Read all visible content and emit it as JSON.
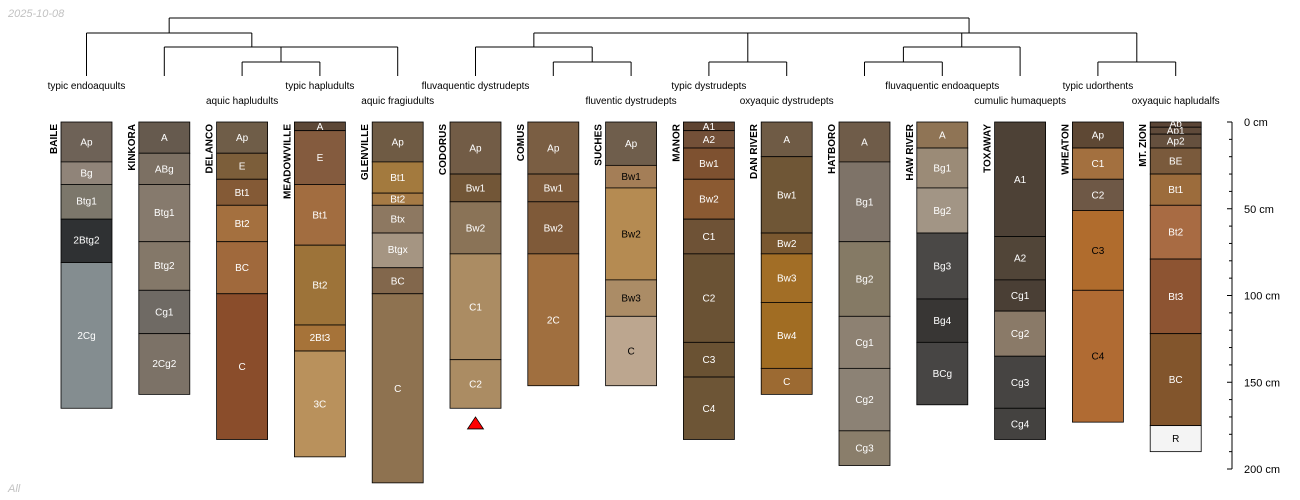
{
  "date_stamp": "2025-10-08",
  "subset_label": "All",
  "depth_axis": {
    "unit": "cm",
    "max_depth": 200,
    "ticks": [
      {
        "depth": 0,
        "label": "0 cm"
      },
      {
        "depth": 50,
        "label": "50 cm"
      },
      {
        "depth": 100,
        "label": "100 cm"
      },
      {
        "depth": 150,
        "label": "150 cm"
      },
      {
        "depth": 200,
        "label": "200 cm"
      }
    ]
  },
  "taxa_labels": [
    {
      "text": "typic endoaquults",
      "profile": 0
    },
    {
      "text": "aquic hapludults",
      "profile": 2
    },
    {
      "text": "typic hapludults",
      "profile": 3
    },
    {
      "text": "aquic fragiudults",
      "profile": 4
    },
    {
      "text": "fluvaquentic dystrudepts",
      "profile": 5
    },
    {
      "text": "fluventic dystrudepts",
      "profile": 7
    },
    {
      "text": "typic dystrudepts",
      "profile": 8
    },
    {
      "text": "oxyaquic dystrudepts",
      "profile": 9
    },
    {
      "text": "fluvaquentic endoaquepts",
      "profile": 11
    },
    {
      "text": "cumulic humaquepts",
      "profile": 12
    },
    {
      "text": "typic udorthents",
      "profile": 13
    },
    {
      "text": "oxyaquic hapludalfs",
      "profile": 14
    }
  ],
  "profiles": [
    {
      "name": "BAILE",
      "horizons": [
        {
          "name": "Ap",
          "top": 0,
          "bottom": 23,
          "color": "#6e6257",
          "text_color": "#ffffff"
        },
        {
          "name": "Bg",
          "top": 23,
          "bottom": 36,
          "color": "#908479",
          "text_color": "#ffffff"
        },
        {
          "name": "Btg1",
          "top": 36,
          "bottom": 56,
          "color": "#7c776b",
          "text_color": "#ffffff"
        },
        {
          "name": "2Btg2",
          "top": 56,
          "bottom": 81,
          "color": "#2f3133",
          "text_color": "#ffffff"
        },
        {
          "name": "2Cg",
          "top": 81,
          "bottom": 165,
          "color": "#848d90",
          "text_color": "#ffffff"
        }
      ]
    },
    {
      "name": "KINKORA",
      "horizons": [
        {
          "name": "A",
          "top": 0,
          "bottom": 18,
          "color": "#665a4e",
          "text_color": "#ffffff"
        },
        {
          "name": "ABg",
          "top": 18,
          "bottom": 36,
          "color": "#7c7063",
          "text_color": "#ffffff"
        },
        {
          "name": "Btg1",
          "top": 36,
          "bottom": 69,
          "color": "#867a6d",
          "text_color": "#ffffff"
        },
        {
          "name": "Btg2",
          "top": 69,
          "bottom": 97,
          "color": "#847869",
          "text_color": "#ffffff"
        },
        {
          "name": "Cg1",
          "top": 97,
          "bottom": 122,
          "color": "#6f6a64",
          "text_color": "#ffffff"
        },
        {
          "name": "2Cg2",
          "top": 122,
          "bottom": 157,
          "color": "#7c7267",
          "text_color": "#ffffff"
        }
      ]
    },
    {
      "name": "DELANCO",
      "horizons": [
        {
          "name": "Ap",
          "top": 0,
          "bottom": 18,
          "color": "#6f5d48",
          "text_color": "#ffffff"
        },
        {
          "name": "E",
          "top": 18,
          "bottom": 33,
          "color": "#7c5e3a",
          "text_color": "#ffffff"
        },
        {
          "name": "Bt1",
          "top": 33,
          "bottom": 48,
          "color": "#845a36",
          "text_color": "#ffffff"
        },
        {
          "name": "Bt2",
          "top": 48,
          "bottom": 69,
          "color": "#a4703f",
          "text_color": "#ffffff"
        },
        {
          "name": "BC",
          "top": 69,
          "bottom": 99,
          "color": "#a0693c",
          "text_color": "#ffffff"
        },
        {
          "name": "C",
          "top": 99,
          "bottom": 183,
          "color": "#8a4d2b",
          "text_color": "#ffffff"
        }
      ]
    },
    {
      "name": "MEADOWVILLE",
      "horizons": [
        {
          "name": "A",
          "top": 0,
          "bottom": 5,
          "color": "#5c4736",
          "text_color": "#ffffff"
        },
        {
          "name": "E",
          "top": 5,
          "bottom": 36,
          "color": "#845b3e",
          "text_color": "#ffffff"
        },
        {
          "name": "Bt1",
          "top": 36,
          "bottom": 71,
          "color": "#a26d40",
          "text_color": "#ffffff"
        },
        {
          "name": "Bt2",
          "top": 71,
          "bottom": 117,
          "color": "#9d7339",
          "text_color": "#ffffff"
        },
        {
          "name": "2Bt3",
          "top": 117,
          "bottom": 132,
          "color": "#a67339",
          "text_color": "#ffffff"
        },
        {
          "name": "3C",
          "top": 132,
          "bottom": 193,
          "color": "#b9915c",
          "text_color": "#ffffff"
        }
      ]
    },
    {
      "name": "GLENVILLE",
      "horizons": [
        {
          "name": "Ap",
          "top": 0,
          "bottom": 23,
          "color": "#6f5b44",
          "text_color": "#ffffff"
        },
        {
          "name": "Bt1",
          "top": 23,
          "bottom": 41,
          "color": "#a37a3e",
          "text_color": "#ffffff"
        },
        {
          "name": "Bt2",
          "top": 41,
          "bottom": 48,
          "color": "#a57a45",
          "text_color": "#ffffff"
        },
        {
          "name": "Btx",
          "top": 48,
          "bottom": 64,
          "color": "#8d7861",
          "text_color": "#ffffff"
        },
        {
          "name": "Btgx",
          "top": 64,
          "bottom": 84,
          "color": "#a59582",
          "text_color": "#ffffff"
        },
        {
          "name": "BC",
          "top": 84,
          "bottom": 99,
          "color": "#82674c",
          "text_color": "#ffffff"
        },
        {
          "name": "C",
          "top": 99,
          "bottom": 208,
          "color": "#8e7250",
          "text_color": "#ffffff"
        }
      ]
    },
    {
      "name": "CODORUS",
      "horizons": [
        {
          "name": "Ap",
          "top": 0,
          "bottom": 30,
          "color": "#725c46",
          "text_color": "#ffffff"
        },
        {
          "name": "Bw1",
          "top": 30,
          "bottom": 46,
          "color": "#725637",
          "text_color": "#ffffff"
        },
        {
          "name": "Bw2",
          "top": 46,
          "bottom": 76,
          "color": "#8a7357",
          "text_color": "#ffffff"
        },
        {
          "name": "C1",
          "top": 76,
          "bottom": 137,
          "color": "#ab8c63",
          "text_color": "#ffffff"
        },
        {
          "name": "C2",
          "top": 137,
          "bottom": 165,
          "color": "#ab8c63",
          "text_color": "#ffffff"
        }
      ]
    },
    {
      "name": "COMUS",
      "horizons": [
        {
          "name": "Ap",
          "top": 0,
          "bottom": 30,
          "color": "#7a5e43",
          "text_color": "#ffffff"
        },
        {
          "name": "Bw1",
          "top": 30,
          "bottom": 46,
          "color": "#7e5b3b",
          "text_color": "#ffffff"
        },
        {
          "name": "Bw2",
          "top": 46,
          "bottom": 76,
          "color": "#7f5a39",
          "text_color": "#ffffff"
        },
        {
          "name": "2C",
          "top": 76,
          "bottom": 152,
          "color": "#a06f3f",
          "text_color": "#ffffff"
        }
      ]
    },
    {
      "name": "SUCHES",
      "horizons": [
        {
          "name": "Ap",
          "top": 0,
          "bottom": 25,
          "color": "#6f5e4c",
          "text_color": "#ffffff"
        },
        {
          "name": "Bw1",
          "top": 25,
          "bottom": 38,
          "color": "#a47e57",
          "text_color": "#000000"
        },
        {
          "name": "Bw2",
          "top": 38,
          "bottom": 91,
          "color": "#b58b52",
          "text_color": "#000000"
        },
        {
          "name": "Bw3",
          "top": 91,
          "bottom": 112,
          "color": "#ab8c66",
          "text_color": "#000000"
        },
        {
          "name": "C",
          "top": 112,
          "bottom": 152,
          "color": "#bca68f",
          "text_color": "#000000"
        }
      ]
    },
    {
      "name": "MANOR",
      "horizons": [
        {
          "name": "A1",
          "top": 0,
          "bottom": 5,
          "color": "#5e4331",
          "text_color": "#ffffff"
        },
        {
          "name": "A2",
          "top": 5,
          "bottom": 15,
          "color": "#735038",
          "text_color": "#ffffff"
        },
        {
          "name": "Bw1",
          "top": 15,
          "bottom": 33,
          "color": "#7e5130",
          "text_color": "#ffffff"
        },
        {
          "name": "Bw2",
          "top": 33,
          "bottom": 56,
          "color": "#8b5a32",
          "text_color": "#ffffff"
        },
        {
          "name": "C1",
          "top": 56,
          "bottom": 76,
          "color": "#6e5236",
          "text_color": "#ffffff"
        },
        {
          "name": "C2",
          "top": 76,
          "bottom": 127,
          "color": "#6a5234",
          "text_color": "#ffffff"
        },
        {
          "name": "C3",
          "top": 127,
          "bottom": 147,
          "color": "#6a5233",
          "text_color": "#ffffff"
        },
        {
          "name": "C4",
          "top": 147,
          "bottom": 183,
          "color": "#6d5536",
          "text_color": "#ffffff"
        }
      ]
    },
    {
      "name": "DAN RIVER",
      "horizons": [
        {
          "name": "A",
          "top": 0,
          "bottom": 20,
          "color": "#6f5b45",
          "text_color": "#ffffff"
        },
        {
          "name": "Bw1",
          "top": 20,
          "bottom": 64,
          "color": "#6f5636",
          "text_color": "#ffffff"
        },
        {
          "name": "Bw2",
          "top": 64,
          "bottom": 76,
          "color": "#7a5830",
          "text_color": "#ffffff"
        },
        {
          "name": "Bw3",
          "top": 76,
          "bottom": 104,
          "color": "#a26e26",
          "text_color": "#ffffff"
        },
        {
          "name": "Bw4",
          "top": 104,
          "bottom": 142,
          "color": "#a16d23",
          "text_color": "#ffffff"
        },
        {
          "name": "C",
          "top": 142,
          "bottom": 157,
          "color": "#9c6a32",
          "text_color": "#ffffff"
        }
      ]
    },
    {
      "name": "HATBORO",
      "horizons": [
        {
          "name": "A",
          "top": 0,
          "bottom": 23,
          "color": "#6f5c49",
          "text_color": "#ffffff"
        },
        {
          "name": "Bg1",
          "top": 23,
          "bottom": 69,
          "color": "#7e7368",
          "text_color": "#ffffff"
        },
        {
          "name": "Bg2",
          "top": 69,
          "bottom": 112,
          "color": "#857a65",
          "text_color": "#ffffff"
        },
        {
          "name": "Cg1",
          "top": 112,
          "bottom": 142,
          "color": "#8d8172",
          "text_color": "#ffffff"
        },
        {
          "name": "Cg2",
          "top": 142,
          "bottom": 178,
          "color": "#8c8275",
          "text_color": "#ffffff"
        },
        {
          "name": "Cg3",
          "top": 178,
          "bottom": 198,
          "color": "#8a7e6b",
          "text_color": "#ffffff"
        }
      ]
    },
    {
      "name": "HAW RIVER",
      "horizons": [
        {
          "name": "A",
          "top": 0,
          "bottom": 15,
          "color": "#8f7455",
          "text_color": "#ffffff"
        },
        {
          "name": "Bg1",
          "top": 15,
          "bottom": 38,
          "color": "#9b8b77",
          "text_color": "#ffffff"
        },
        {
          "name": "Bg2",
          "top": 38,
          "bottom": 64,
          "color": "#a29585",
          "text_color": "#ffffff"
        },
        {
          "name": "Bg3",
          "top": 64,
          "bottom": 102,
          "color": "#4a4846",
          "text_color": "#ffffff"
        },
        {
          "name": "Bg4",
          "top": 102,
          "bottom": 127,
          "color": "#383634",
          "text_color": "#ffffff"
        },
        {
          "name": "BCg",
          "top": 127,
          "bottom": 163,
          "color": "#474544",
          "text_color": "#ffffff"
        }
      ]
    },
    {
      "name": "TOXAWAY",
      "horizons": [
        {
          "name": "A1",
          "top": 0,
          "bottom": 66,
          "color": "#4d4136",
          "text_color": "#ffffff"
        },
        {
          "name": "A2",
          "top": 66,
          "bottom": 91,
          "color": "#514538",
          "text_color": "#ffffff"
        },
        {
          "name": "Cg1",
          "top": 91,
          "bottom": 109,
          "color": "#4a3f35",
          "text_color": "#ffffff"
        },
        {
          "name": "Cg2",
          "top": 109,
          "bottom": 135,
          "color": "#8a7a68",
          "text_color": "#ffffff"
        },
        {
          "name": "Cg3",
          "top": 135,
          "bottom": 165,
          "color": "#464442",
          "text_color": "#ffffff"
        },
        {
          "name": "Cg4",
          "top": 165,
          "bottom": 183,
          "color": "#444240",
          "text_color": "#ffffff"
        }
      ]
    },
    {
      "name": "WHEATON",
      "horizons": [
        {
          "name": "Ap",
          "top": 0,
          "bottom": 15,
          "color": "#5e4834",
          "text_color": "#ffffff"
        },
        {
          "name": "C1",
          "top": 15,
          "bottom": 33,
          "color": "#a3703f",
          "text_color": "#ffffff"
        },
        {
          "name": "C2",
          "top": 33,
          "bottom": 51,
          "color": "#6e5846",
          "text_color": "#ffffff"
        },
        {
          "name": "C3",
          "top": 51,
          "bottom": 97,
          "color": "#b06c2d",
          "text_color": "#000000"
        },
        {
          "name": "C4",
          "top": 97,
          "bottom": 173,
          "color": "#b06b33",
          "text_color": "#000000"
        }
      ]
    },
    {
      "name": "MT. ZION",
      "horizons": [
        {
          "name": "Ap",
          "top": 0,
          "bottom": 3,
          "color": "#5b4536",
          "text_color": "#ffffff"
        },
        {
          "name": "Ap1",
          "top": 3,
          "bottom": 7,
          "color": "#5f4a3a",
          "text_color": "#ffffff"
        },
        {
          "name": "Ap2",
          "top": 7,
          "bottom": 15,
          "color": "#65503e",
          "text_color": "#ffffff"
        },
        {
          "name": "BE",
          "top": 15,
          "bottom": 30,
          "color": "#7a5a3c",
          "text_color": "#ffffff"
        },
        {
          "name": "Bt1",
          "top": 30,
          "bottom": 48,
          "color": "#9c6c3c",
          "text_color": "#ffffff"
        },
        {
          "name": "Bt2",
          "top": 48,
          "bottom": 79,
          "color": "#a86b43",
          "text_color": "#ffffff"
        },
        {
          "name": "Bt3",
          "top": 79,
          "bottom": 122,
          "color": "#8d5432",
          "text_color": "#ffffff"
        },
        {
          "name": "BC",
          "top": 122,
          "bottom": 175,
          "color": "#82552c",
          "text_color": "#ffffff"
        },
        {
          "name": "R",
          "top": 175,
          "bottom": 190,
          "color": "#f4f4f4",
          "text_color": "#000000"
        }
      ]
    }
  ],
  "markers": [
    {
      "type": "triangle",
      "profile": 5,
      "depth": 170,
      "color": "#ff0000"
    }
  ],
  "dendrogram": {
    "description": "hierarchical clustering of profiles",
    "merges": [
      {
        "left": [
          2
        ],
        "right": [
          3
        ]
      },
      {
        "left": [
          2,
          3
        ],
        "right": [
          4
        ]
      },
      {
        "left": [
          1
        ],
        "right": [
          2,
          3,
          4
        ]
      },
      {
        "left": [
          0
        ],
        "right": [
          1,
          2,
          3,
          4
        ]
      },
      {
        "left": [
          6
        ],
        "right": [
          7
        ]
      },
      {
        "left": [
          5
        ],
        "right": [
          6,
          7
        ]
      },
      {
        "left": [
          8
        ],
        "right": [
          9
        ]
      },
      {
        "left": [
          5,
          6,
          7
        ],
        "right": [
          8,
          9
        ]
      },
      {
        "left": [
          10
        ],
        "right": [
          11
        ]
      },
      {
        "left": [
          10,
          11
        ],
        "right": [
          12
        ]
      },
      {
        "left": [
          5,
          6,
          7,
          8,
          9
        ],
        "right": [
          10,
          11,
          12
        ]
      },
      {
        "left": [
          13
        ],
        "right": [
          14
        ]
      },
      {
        "left": [
          5,
          6,
          7,
          8,
          9,
          10,
          11,
          12
        ],
        "right": [
          13,
          14
        ]
      },
      {
        "left": [
          0,
          1,
          2,
          3,
          4
        ],
        "right": [
          5,
          6,
          7,
          8,
          9,
          10,
          11,
          12,
          13,
          14
        ]
      }
    ]
  }
}
